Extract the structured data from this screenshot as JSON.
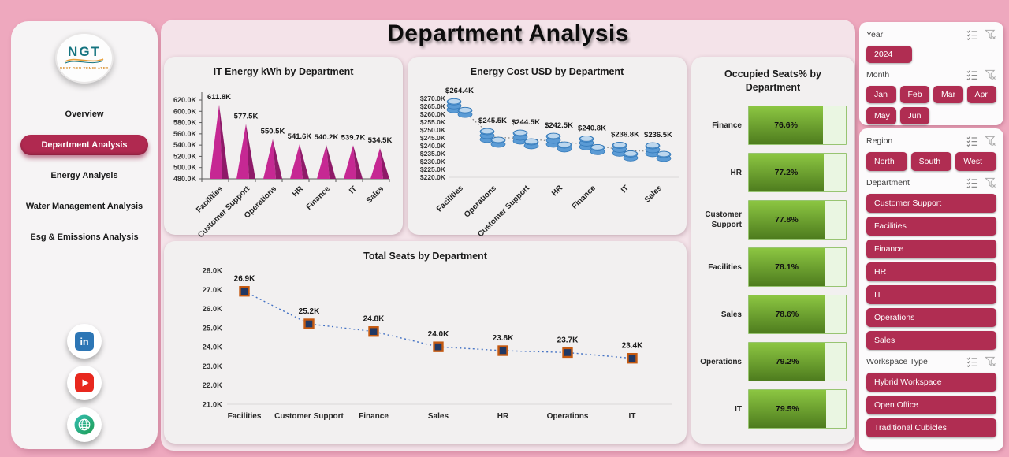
{
  "page": {
    "title": "Department Analysis"
  },
  "sidebar": {
    "logo": {
      "text": "NGT",
      "subtext": "NEXT GEN TEMPLATES"
    },
    "nav": [
      {
        "label": "Overview",
        "active": false
      },
      {
        "label": "Department Analysis",
        "active": true
      },
      {
        "label": "Energy Analysis",
        "active": false
      },
      {
        "label": "Water Management Analysis",
        "active": false
      },
      {
        "label": "Esg & Emissions Analysis",
        "active": false
      }
    ],
    "socials": [
      {
        "name": "linkedin"
      },
      {
        "name": "youtube"
      },
      {
        "name": "website"
      }
    ]
  },
  "chart_data": [
    {
      "id": "it-energy",
      "type": "bar",
      "variant": "cone",
      "title": "IT Energy kWh by Department",
      "categories": [
        "Facilities",
        "Customer Support",
        "Operations",
        "HR",
        "Finance",
        "IT",
        "Sales"
      ],
      "values": [
        611.8,
        577.5,
        550.5,
        541.6,
        540.2,
        539.7,
        534.5
      ],
      "labels": [
        "611.8K",
        "577.5K",
        "550.5K",
        "541.6K",
        "540.2K",
        "539.7K",
        "534.5K"
      ],
      "xlabel": "",
      "ylabel": "",
      "ylim": [
        480,
        620
      ],
      "ytick_step": 20,
      "ytick_suffix": "K",
      "grid": false
    },
    {
      "id": "energy-cost",
      "type": "line",
      "variant": "coin-stack",
      "title": "Energy Cost USD by Department",
      "categories": [
        "Facilities",
        "Operations",
        "Customer Support",
        "HR",
        "Finance",
        "IT",
        "Sales"
      ],
      "values": [
        264.4,
        245.5,
        244.5,
        242.5,
        240.8,
        236.8,
        236.5
      ],
      "labels": [
        "$264.4K",
        "$245.5K",
        "$244.5K",
        "$242.5K",
        "$240.8K",
        "$236.8K",
        "$236.5K"
      ],
      "xlabel": "",
      "ylabel": "",
      "ylim": [
        220,
        270
      ],
      "ytick_step": 5,
      "ytick_prefix": "$",
      "ytick_suffix": "K",
      "grid": false
    },
    {
      "id": "total-seats",
      "type": "line",
      "variant": "square-marker",
      "title": "Total Seats by Department",
      "categories": [
        "Facilities",
        "Customer Support",
        "Finance",
        "Sales",
        "HR",
        "Operations",
        "IT"
      ],
      "values": [
        26.9,
        25.2,
        24.8,
        24.0,
        23.8,
        23.7,
        23.4
      ],
      "labels": [
        "26.9K",
        "25.2K",
        "24.8K",
        "24.0K",
        "23.8K",
        "23.7K",
        "23.4K"
      ],
      "xlabel": "",
      "ylabel": "",
      "ylim": [
        21,
        28
      ],
      "ytick_step": 1,
      "ytick_suffix": "K",
      "grid": false
    },
    {
      "id": "occupied-seats",
      "type": "bar",
      "orientation": "horizontal",
      "title": "Occupied Seats% by Department",
      "categories": [
        "Finance",
        "HR",
        "Customer Support",
        "Facilities",
        "Sales",
        "Operations",
        "IT"
      ],
      "values": [
        76.6,
        77.2,
        77.8,
        78.1,
        78.6,
        79.2,
        79.5
      ],
      "labels": [
        "76.6%",
        "77.2%",
        "77.8%",
        "78.1%",
        "78.6%",
        "79.2%",
        "79.5%"
      ],
      "xlim": [
        0,
        100
      ]
    }
  ],
  "filters": {
    "sections": [
      {
        "label": "Year",
        "layout": "single",
        "options": [
          "2024"
        ]
      },
      {
        "label": "Month",
        "layout": "grid4",
        "options": [
          "Jan",
          "Feb",
          "Mar",
          "Apr",
          "May",
          "Jun"
        ]
      },
      {
        "label": "Region",
        "layout": "grid3",
        "options": [
          "North",
          "South",
          "West"
        ]
      },
      {
        "label": "Department",
        "layout": "stack",
        "options": [
          "Customer Support",
          "Facilities",
          "Finance",
          "HR",
          "IT",
          "Operations",
          "Sales"
        ]
      },
      {
        "label": "Workspace Type",
        "layout": "stack",
        "options": [
          "Hybrid Workspace",
          "Open Office",
          "Traditional Cubicles"
        ]
      }
    ]
  },
  "colors": {
    "accent": "#B02D52",
    "cone": "#C62893",
    "cone_dark": "#8E1A68",
    "coin": "#5B9BD5",
    "coin_edge": "#2E75B6",
    "coin_light": "#BDD7EE",
    "marker_fill": "#203864",
    "marker_border": "#C55A11",
    "line_dot": "#4472C4",
    "dot_gray": "#808080",
    "bar_green_top": "#8CC642",
    "bar_green_bottom": "#4E7C1E",
    "frame": "#EEA8BE",
    "panel_pink": "#F4E3E9"
  }
}
